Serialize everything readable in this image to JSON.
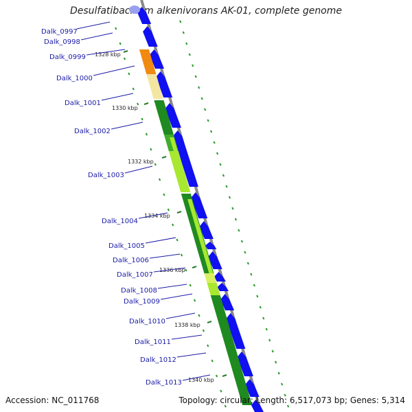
{
  "title": "Desulfatibacillum alkenivorans AK-01, complete genome",
  "footer": {
    "accession": "Accession: NC_011768",
    "summary": "Topology: circular; Length: 6,517,073 bp; Genes: 5,314"
  },
  "colors": {
    "cds_blue": "#1010f0",
    "cog_green_dark": "#1f8a1f",
    "cog_green_light": "#a8e830",
    "cog_yellow": "#f3e6a0",
    "cog_orange": "#f08a10",
    "backbone": "#888888",
    "gc_dots": "#2a9a2a",
    "label_blue": "#1a1aa6"
  },
  "genes": [
    {
      "label": "Dalk_0997"
    },
    {
      "label": "Dalk_0998"
    },
    {
      "label": "Dalk_0999"
    },
    {
      "label": "Dalk_1000"
    },
    {
      "label": "Dalk_1001"
    },
    {
      "label": "Dalk_1002"
    },
    {
      "label": "Dalk_1003"
    },
    {
      "label": "Dalk_1004"
    },
    {
      "label": "Dalk_1005"
    },
    {
      "label": "Dalk_1006"
    },
    {
      "label": "Dalk_1007"
    },
    {
      "label": "Dalk_1008"
    },
    {
      "label": "Dalk_1009"
    },
    {
      "label": "Dalk_1010"
    },
    {
      "label": "Dalk_1011"
    },
    {
      "label": "Dalk_1012"
    },
    {
      "label": "Dalk_1013"
    }
  ],
  "ticks": [
    "1328 kbp",
    "1330 kbp",
    "1332 kbp",
    "1334 kbp",
    "1336 kbp",
    "1338 kbp",
    "1340 kbp"
  ]
}
